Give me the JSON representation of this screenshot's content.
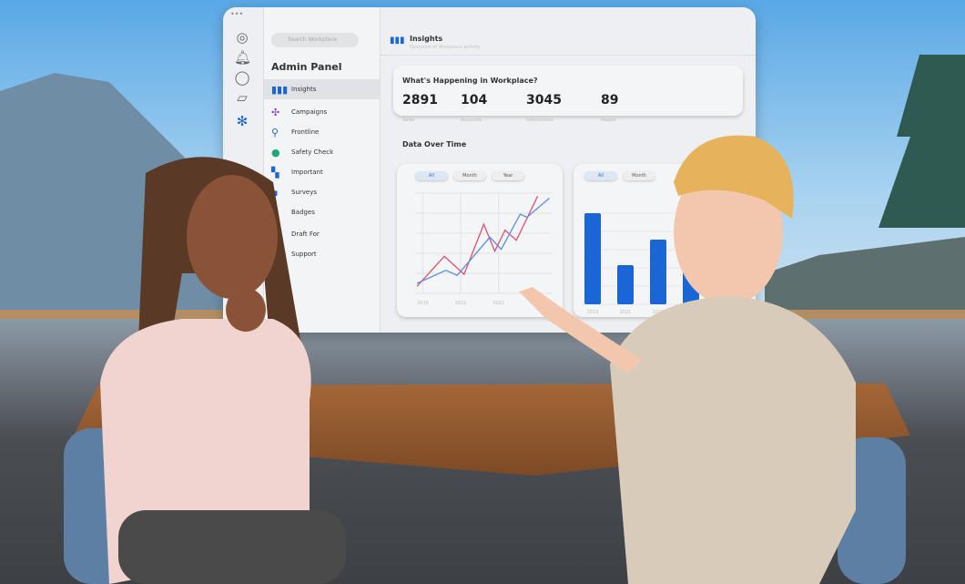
{
  "panel": {
    "search_placeholder": "Search Workplace",
    "sidebar_icons": [
      "workplace-logo-icon",
      "bell-icon",
      "chat-icon",
      "book-icon",
      "tools-icon"
    ],
    "nav_title": "Admin Panel",
    "nav_items": [
      {
        "label": "Insights",
        "icon": "bar-chart-icon",
        "active": true
      },
      {
        "label": "Campaigns",
        "icon": "network-icon"
      },
      {
        "label": "Frontline",
        "icon": "frontline-icon"
      },
      {
        "label": "Safety Check",
        "icon": "safety-icon"
      },
      {
        "label": "Important",
        "icon": "important-icon"
      },
      {
        "label": "Surveys",
        "icon": "survey-icon"
      },
      {
        "label": "Badges",
        "icon": "badge-icon"
      },
      {
        "label": "Draft For",
        "icon": "draft-icon"
      },
      {
        "label": "Support",
        "icon": "support-icon"
      }
    ],
    "header": {
      "title": "Insights",
      "subtitle": "Overview of Workplace activity"
    },
    "summary": {
      "title": "What's Happening in Workplace?",
      "stats": [
        {
          "value": "2891",
          "label": "Sales"
        },
        {
          "value": "104",
          "label": "Accounts"
        },
        {
          "value": "3045",
          "label": "Interactions"
        },
        {
          "value": "89",
          "label": "People"
        }
      ]
    },
    "section_title": "Data Over Time",
    "filters": [
      "All",
      "Month",
      "Year"
    ],
    "accent": "#1a66d6"
  },
  "chart_data": [
    {
      "type": "line",
      "x_ticks": [
        "2020",
        "2021",
        "2022"
      ],
      "grid": true,
      "series": [
        {
          "color": "#e0506e",
          "x": [
            2019.85,
            2020.57,
            2021.09,
            2021.61,
            2021.9,
            2022.17,
            2022.47,
            2023.03
          ],
          "y": [
            7,
            37,
            19,
            69,
            42,
            63,
            53,
            97
          ]
        },
        {
          "color": "#5b8fe0",
          "x": [
            2019.85,
            2020.61,
            2020.91,
            2021.77,
            2022.07,
            2022.57,
            2022.75,
            2023.34
          ],
          "y": [
            10,
            23,
            18,
            56,
            44,
            79,
            76,
            95
          ]
        }
      ]
    },
    {
      "type": "bar",
      "categories": [
        "2019",
        "2021",
        "2022",
        ""
      ],
      "values": [
        100,
        43,
        71,
        60
      ],
      "color": "#1a66d6",
      "grid": true
    }
  ]
}
